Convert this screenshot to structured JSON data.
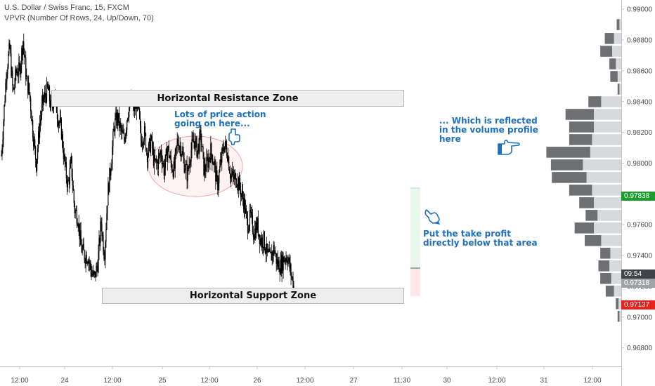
{
  "legend": {
    "line1": "U.S. Dollar / Swiss Franc, 15, FXCM",
    "line2": "VPVR (Number Of Rows, 24, Up/Down, 70)"
  },
  "annotations": {
    "resistance_zone": "Horizontal Resistance Zone",
    "support_zone": "Horizontal Support Zone",
    "price_action_note": "Lots of price action\ngoing on here...",
    "volume_note": "... Which is reflected\nin the volume profile\nhere",
    "take_profit_note": "Put the take profit\ndirectly below that area"
  },
  "icons": {
    "price_action_hand": "pointing-hand-down-icon",
    "volume_hand": "pointing-hand-right-icon",
    "take_profit_hand": "pointing-hand-down-icon"
  },
  "price_badges": {
    "green_label": "0.97838",
    "countdown_label": "09:54",
    "current_label": "0.97318",
    "red_label": "0.97137"
  },
  "colors": {
    "candle": "#000000",
    "annotation": "#1e70bf",
    "green_badge": "#1a9c2e",
    "red_badge": "#e8231f",
    "gray_badge": "#a0a3a6",
    "dark_badge": "#3f4246",
    "volume_dark": "#6d6f73",
    "volume_light": "#d8d9dc",
    "highlight_ellipse": "#f4a8a8"
  },
  "chart_data": {
    "type": "candlestick",
    "symbol": "U.S. Dollar / Swiss Franc",
    "timeframe": "15",
    "source": "FXCM",
    "y_axis": {
      "min": 0.9668,
      "max": 0.9906,
      "tick_labels": [
        "0.99000",
        "0.98800",
        "0.98600",
        "0.98400",
        "0.98200",
        "0.98000",
        "0.97800",
        "0.97600",
        "0.97400",
        "0.97200",
        "0.97000",
        "0.96800"
      ]
    },
    "x_axis": {
      "tick_labels": [
        "12:00",
        "24",
        "12:00",
        "25",
        "12:00",
        "26",
        "12:00",
        "27",
        "11:30",
        "30",
        "12:00",
        "31",
        "12:00"
      ]
    },
    "price_path": [
      [
        0,
        0.9805
      ],
      [
        1.5,
        0.986
      ],
      [
        2.5,
        0.9875
      ],
      [
        3.5,
        0.9845
      ],
      [
        4.5,
        0.986
      ],
      [
        5.5,
        0.986
      ],
      [
        6.5,
        0.988
      ],
      [
        7.5,
        0.9855
      ],
      [
        8.5,
        0.9845
      ],
      [
        9.5,
        0.982
      ],
      [
        10.5,
        0.98
      ],
      [
        11.5,
        0.9825
      ],
      [
        12.5,
        0.984
      ],
      [
        14,
        0.9848
      ],
      [
        15,
        0.9835
      ],
      [
        16,
        0.9845
      ],
      [
        17,
        0.983
      ],
      [
        18,
        0.9822
      ],
      [
        19,
        0.98
      ],
      [
        20,
        0.9785
      ],
      [
        21,
        0.98
      ],
      [
        22,
        0.977
      ],
      [
        23,
        0.9765
      ],
      [
        24,
        0.9745
      ],
      [
        25,
        0.974
      ],
      [
        26,
        0.974
      ],
      [
        27,
        0.973
      ],
      [
        28,
        0.9725
      ],
      [
        29,
        0.9735
      ],
      [
        30,
        0.9762
      ],
      [
        31,
        0.974
      ],
      [
        32,
        0.978
      ],
      [
        33,
        0.98
      ],
      [
        34,
        0.9825
      ],
      [
        35,
        0.983
      ],
      [
        36,
        0.982
      ],
      [
        37,
        0.9815
      ],
      [
        38,
        0.9833
      ],
      [
        39,
        0.984
      ],
      [
        40,
        0.9835
      ],
      [
        41,
        0.984
      ],
      [
        42,
        0.9815
      ],
      [
        43,
        0.982
      ],
      [
        44,
        0.9805
      ],
      [
        45,
        0.9815
      ],
      [
        46,
        0.98
      ],
      [
        47,
        0.98
      ],
      [
        48,
        0.9808
      ],
      [
        49,
        0.9795
      ],
      [
        50,
        0.981
      ],
      [
        51,
        0.98
      ],
      [
        52,
        0.9795
      ],
      [
        53,
        0.9815
      ],
      [
        54,
        0.981
      ],
      [
        55,
        0.98
      ],
      [
        56,
        0.9792
      ],
      [
        57,
        0.9808
      ],
      [
        58,
        0.9815
      ],
      [
        59,
        0.9808
      ],
      [
        60,
        0.9818
      ],
      [
        61,
        0.9795
      ],
      [
        62,
        0.98
      ],
      [
        63,
        0.9808
      ],
      [
        64,
        0.98
      ],
      [
        65,
        0.9785
      ],
      [
        66,
        0.98
      ],
      [
        67,
        0.9812
      ],
      [
        68,
        0.9808
      ],
      [
        69,
        0.9792
      ],
      [
        70,
        0.979
      ],
      [
        71,
        0.979
      ],
      [
        72,
        0.9782
      ],
      [
        73,
        0.9775
      ],
      [
        74,
        0.976
      ],
      [
        75,
        0.9765
      ],
      [
        76,
        0.9755
      ],
      [
        77,
        0.976
      ],
      [
        78,
        0.975
      ],
      [
        79,
        0.975
      ],
      [
        80,
        0.974
      ],
      [
        81,
        0.9738
      ],
      [
        82,
        0.9745
      ],
      [
        83,
        0.9735
      ],
      [
        84,
        0.9733
      ],
      [
        85,
        0.9738
      ],
      [
        86,
        0.974
      ],
      [
        87,
        0.973
      ],
      [
        88,
        0.972
      ]
    ],
    "volume_profile": [
      {
        "price": 0.989,
        "up": 0.1,
        "down": 0.15
      },
      {
        "price": 0.9881,
        "up": 0.4,
        "down": 0.5
      },
      {
        "price": 0.98727,
        "up": 0.5,
        "down": 0.65
      },
      {
        "price": 0.98645,
        "up": 0.3,
        "down": 0.35
      },
      {
        "price": 0.98563,
        "up": 0.2,
        "down": 0.4
      },
      {
        "price": 0.98481,
        "up": 0.1,
        "down": 0.1
      },
      {
        "price": 0.98399,
        "up": 1.1,
        "down": 0.7
      },
      {
        "price": 0.98317,
        "up": 1.5,
        "down": 1.55
      },
      {
        "price": 0.98235,
        "up": 1.5,
        "down": 1.35
      },
      {
        "price": 0.98153,
        "up": 1.6,
        "down": 1.25
      },
      {
        "price": 0.98071,
        "up": 1.7,
        "down": 2.4
      },
      {
        "price": 0.97989,
        "up": 2.1,
        "down": 1.75
      },
      {
        "price": 0.97907,
        "up": 1.9,
        "down": 1.9
      },
      {
        "price": 0.97825,
        "up": 1.6,
        "down": 1.25
      },
      {
        "price": 0.97743,
        "up": 1.5,
        "down": 0.8
      },
      {
        "price": 0.97661,
        "up": 1.3,
        "down": 0.65
      },
      {
        "price": 0.97579,
        "up": 1.5,
        "down": 1.05
      },
      {
        "price": 0.97497,
        "up": 1.1,
        "down": 0.9
      },
      {
        "price": 0.97415,
        "up": 0.6,
        "down": 0.55
      },
      {
        "price": 0.97333,
        "up": 0.65,
        "down": 0.6
      },
      {
        "price": 0.97251,
        "up": 0.55,
        "down": 0.6
      },
      {
        "price": 0.97169,
        "up": 0.4,
        "down": 0.45
      },
      {
        "price": 0.97087,
        "up": 0.15,
        "down": 0.15
      },
      {
        "price": 0.97005,
        "up": 0.1,
        "down": 0.1
      }
    ],
    "levels": {
      "resistance_zone": [
        0.9835,
        0.9843
      ],
      "support_zone": [
        0.97145,
        0.9725
      ],
      "take_profit": 0.97838,
      "entry": 0.97318,
      "stop_loss": 0.97137
    },
    "grid": false
  }
}
